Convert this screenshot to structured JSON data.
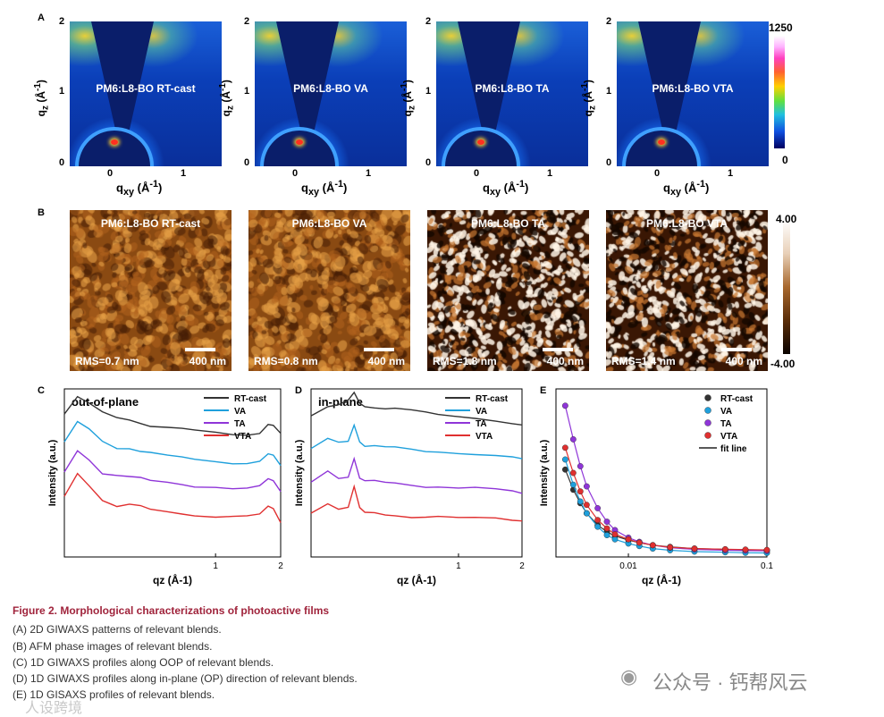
{
  "panels": {
    "A": "A",
    "B": "B",
    "C": "C",
    "D": "D",
    "E": "E"
  },
  "giwaxs": {
    "samples": [
      "PM6:L8-BO RT-cast",
      "PM6:L8-BO VA",
      "PM6:L8-BO TA",
      "PM6:L8-BO VTA"
    ],
    "y_ticks": [
      "2",
      "1",
      "0"
    ],
    "x_ticks": [
      "0",
      "1"
    ],
    "ylabel": "qz (Å-1)",
    "ylabel_main": "q",
    "ylabel_sub": "z",
    "ylabel_unit": "(Å",
    "ylabel_sup": "-1",
    "ylabel_close": ")",
    "xlabel_main": "q",
    "xlabel_sub": "xy",
    "xlabel_unit": "(Å",
    "xlabel_sup": "-1",
    "xlabel_close": ")",
    "colorbar_max": "1250",
    "colorbar_min": "0"
  },
  "afm": {
    "samples": [
      {
        "title": "PM6:L8-BO RT-cast",
        "rms": "RMS=0.7 nm",
        "scale": "400 nm",
        "tone": "smooth"
      },
      {
        "title": "PM6:L8-BO VA",
        "rms": "RMS=0.8 nm",
        "scale": "400 nm",
        "tone": "smooth"
      },
      {
        "title": "PM6:L8-BO TA",
        "rms": "RMS=1.8 nm",
        "scale": "400 nm",
        "tone": "rough"
      },
      {
        "title": "PM6:L8-BO VTA",
        "rms": "RMS=1.4 nm",
        "scale": "400 nm",
        "tone": "rough"
      }
    ],
    "colorbar_max": "4.00",
    "colorbar_min": "-4.00"
  },
  "chart_data": [
    {
      "type": "line",
      "panel": "C",
      "title": "out-of-plane",
      "xlabel": "qz (Å-1)",
      "ylabel": "Intensity (a.u.)",
      "xscale": "log",
      "xlim": [
        0.2,
        2
      ],
      "ylim": [
        0,
        10
      ],
      "x_ticks": [
        "1",
        "2"
      ],
      "x": [
        0.2,
        0.23,
        0.26,
        0.3,
        0.35,
        0.4,
        0.45,
        0.5,
        0.6,
        0.7,
        0.8,
        1.0,
        1.2,
        1.4,
        1.6,
        1.75,
        1.85,
        2.0
      ],
      "series": [
        {
          "name": "RT-cast",
          "color": "#333333",
          "values": [
            8.5,
            9.5,
            9.1,
            8.6,
            8.3,
            8.2,
            8.0,
            7.8,
            7.7,
            7.6,
            7.5,
            7.4,
            7.3,
            7.3,
            7.4,
            7.9,
            7.8,
            7.3
          ]
        },
        {
          "name": "VA",
          "color": "#1fa0dc",
          "values": [
            6.8,
            8.0,
            7.6,
            6.9,
            6.5,
            6.5,
            6.3,
            6.2,
            6.0,
            5.9,
            5.8,
            5.7,
            5.6,
            5.6,
            5.7,
            6.1,
            6.0,
            5.4
          ]
        },
        {
          "name": "TA",
          "color": "#8f35d8",
          "values": [
            5.0,
            6.3,
            5.8,
            5.0,
            4.9,
            4.8,
            4.7,
            4.5,
            4.4,
            4.3,
            4.2,
            4.2,
            4.1,
            4.1,
            4.2,
            4.6,
            4.5,
            3.9
          ]
        },
        {
          "name": "VTA",
          "color": "#e03030",
          "values": [
            3.6,
            5.0,
            4.3,
            3.4,
            3.0,
            3.1,
            3.0,
            2.8,
            2.7,
            2.6,
            2.5,
            2.4,
            2.4,
            2.4,
            2.5,
            3.0,
            2.9,
            2.1
          ]
        }
      ]
    },
    {
      "type": "line",
      "panel": "D",
      "title": "in-plane",
      "xlabel": "qz (Å-1)",
      "ylabel": "Intensity (a.u.)",
      "xscale": "log",
      "xlim": [
        0.2,
        2
      ],
      "ylim": [
        0,
        10
      ],
      "x_ticks": [
        "1",
        "2"
      ],
      "x": [
        0.2,
        0.24,
        0.27,
        0.3,
        0.32,
        0.34,
        0.36,
        0.4,
        0.45,
        0.5,
        0.6,
        0.7,
        0.8,
        1.0,
        1.2,
        1.5,
        1.8,
        2.0
      ],
      "series": [
        {
          "name": "RT-cast",
          "color": "#333333",
          "values": [
            8.4,
            8.9,
            9.0,
            9.3,
            9.8,
            9.2,
            9.0,
            8.9,
            8.8,
            8.8,
            8.7,
            8.6,
            8.5,
            8.4,
            8.3,
            8.1,
            7.9,
            7.8
          ]
        },
        {
          "name": "VA",
          "color": "#1fa0dc",
          "values": [
            6.4,
            7.0,
            6.8,
            6.9,
            7.9,
            6.9,
            6.6,
            6.6,
            6.5,
            6.5,
            6.4,
            6.3,
            6.3,
            6.2,
            6.1,
            6.0,
            5.9,
            5.8
          ]
        },
        {
          "name": "TA",
          "color": "#8f35d8",
          "values": [
            4.4,
            5.1,
            4.7,
            4.8,
            5.9,
            4.7,
            4.5,
            4.5,
            4.4,
            4.4,
            4.3,
            4.2,
            4.2,
            4.1,
            4.1,
            4.0,
            3.9,
            3.8
          ]
        },
        {
          "name": "VTA",
          "color": "#e03030",
          "values": [
            2.6,
            3.2,
            2.9,
            3.0,
            4.2,
            2.9,
            2.6,
            2.6,
            2.5,
            2.5,
            2.4,
            2.4,
            2.4,
            2.3,
            2.3,
            2.3,
            2.2,
            2.2
          ]
        }
      ]
    },
    {
      "type": "scatter",
      "panel": "E",
      "xlabel": "qz (Å-1)",
      "ylabel": "Intensity (a.u.)",
      "xscale": "log",
      "xlim": [
        0.003,
        0.1
      ],
      "ylim": [
        0,
        10
      ],
      "x_ticks": [
        "0.01",
        "0.1"
      ],
      "fit_label": "fit line",
      "x": [
        0.0035,
        0.004,
        0.0045,
        0.005,
        0.006,
        0.007,
        0.008,
        0.01,
        0.012,
        0.015,
        0.02,
        0.03,
        0.05,
        0.07,
        0.1
      ],
      "series": [
        {
          "name": "RT-cast",
          "color": "#333333",
          "values": [
            5.2,
            4.0,
            3.2,
            2.6,
            1.9,
            1.5,
            1.25,
            1.0,
            0.85,
            0.7,
            0.6,
            0.5,
            0.45,
            0.42,
            0.4
          ]
        },
        {
          "name": "VA",
          "color": "#1fa0dc",
          "values": [
            5.8,
            4.3,
            3.3,
            2.6,
            1.8,
            1.3,
            1.05,
            0.8,
            0.65,
            0.5,
            0.4,
            0.32,
            0.28,
            0.25,
            0.24
          ]
        },
        {
          "name": "TA",
          "color": "#8f35d8",
          "values": [
            9.0,
            7.0,
            5.4,
            4.2,
            2.9,
            2.1,
            1.6,
            1.15,
            0.9,
            0.7,
            0.55,
            0.45,
            0.4,
            0.38,
            0.36
          ]
        },
        {
          "name": "VTA",
          "color": "#e03030",
          "values": [
            6.5,
            5.0,
            3.9,
            3.1,
            2.2,
            1.7,
            1.35,
            1.05,
            0.85,
            0.7,
            0.58,
            0.5,
            0.46,
            0.44,
            0.42
          ]
        }
      ]
    }
  ],
  "caption": {
    "title": "Figure 2.  Morphological characterizations of photoactive films",
    "lines": [
      "(A) 2D GIWAXS patterns of relevant blends.",
      "(B) AFM phase images of relevant blends.",
      "(C) 1D GIWAXS profiles along OOP of relevant blends.",
      "(D) 1D GIWAXS profiles along in-plane (OP) direction of relevant blends.",
      "(E) 1D GISAXS profiles of relevant blends."
    ]
  },
  "watermark": {
    "right": "公众号 · 钙帮风云",
    "left": "人设跨境"
  }
}
